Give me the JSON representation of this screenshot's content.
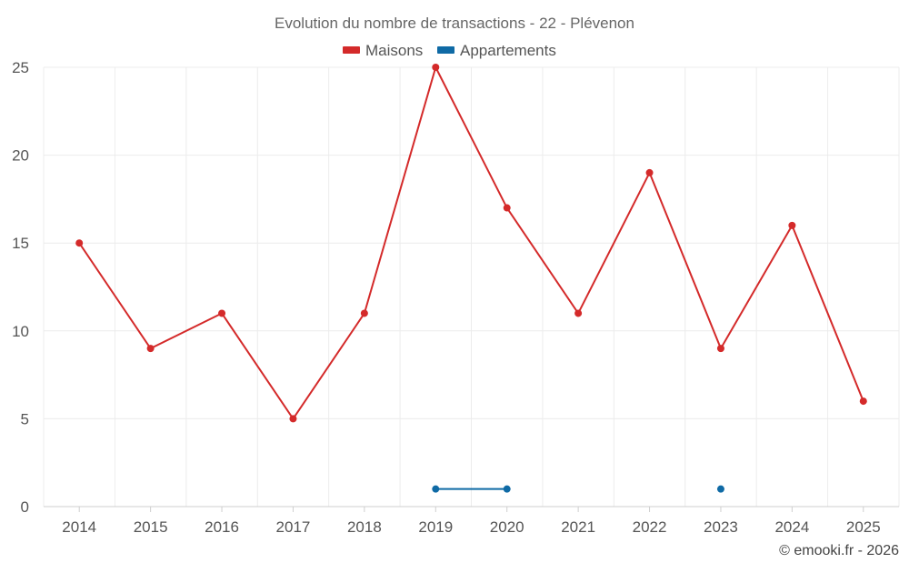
{
  "chart_data": {
    "type": "line",
    "title": "Evolution du nombre de transactions - 22 - Plévenon",
    "xlabel": "",
    "ylabel": "",
    "categories": [
      "2014",
      "2015",
      "2016",
      "2017",
      "2018",
      "2019",
      "2020",
      "2021",
      "2022",
      "2023",
      "2024",
      "2025"
    ],
    "ylim": [
      0,
      25
    ],
    "yticks": [
      "0",
      "5",
      "10",
      "15",
      "20",
      "25"
    ],
    "grid": true,
    "legend_position": "top-center",
    "series": [
      {
        "name": "Maisons",
        "color": "#d42a2a",
        "values": [
          15,
          9,
          11,
          5,
          11,
          25,
          17,
          11,
          19,
          9,
          16,
          6
        ]
      },
      {
        "name": "Appartements",
        "color": "#0f6aa5",
        "values": [
          null,
          null,
          null,
          null,
          null,
          1,
          1,
          null,
          null,
          1,
          null,
          null
        ]
      }
    ]
  },
  "credit": "© emooki.fr - 2026"
}
